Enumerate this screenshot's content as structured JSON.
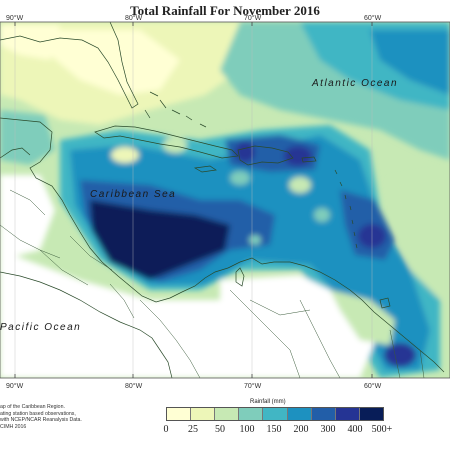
{
  "title": "Total Rainfall For November 2016",
  "longitude_labels": [
    "90°W",
    "80°W",
    "70°W",
    "60°W"
  ],
  "oceans": {
    "atlantic": "Atlantic Ocean",
    "caribbean": "Caribbean Sea",
    "pacific": "Pacific Ocean"
  },
  "credits": [
    "ap of the Caribbean Region.",
    "ating station based observations,",
    "with NCEP/NCAR Reanalysis Data.",
    "CIMH 2016"
  ],
  "legend": {
    "title": "Rainfall (mm)",
    "ticks": [
      "0",
      "25",
      "50",
      "100",
      "150",
      "200",
      "300",
      "400",
      "500+"
    ],
    "colors": [
      "#ffffd4",
      "#edf6b8",
      "#c7e9b4",
      "#7fcdbb",
      "#41b6c4",
      "#1d91c0",
      "#225ea8",
      "#253494",
      "#081d58"
    ]
  }
}
